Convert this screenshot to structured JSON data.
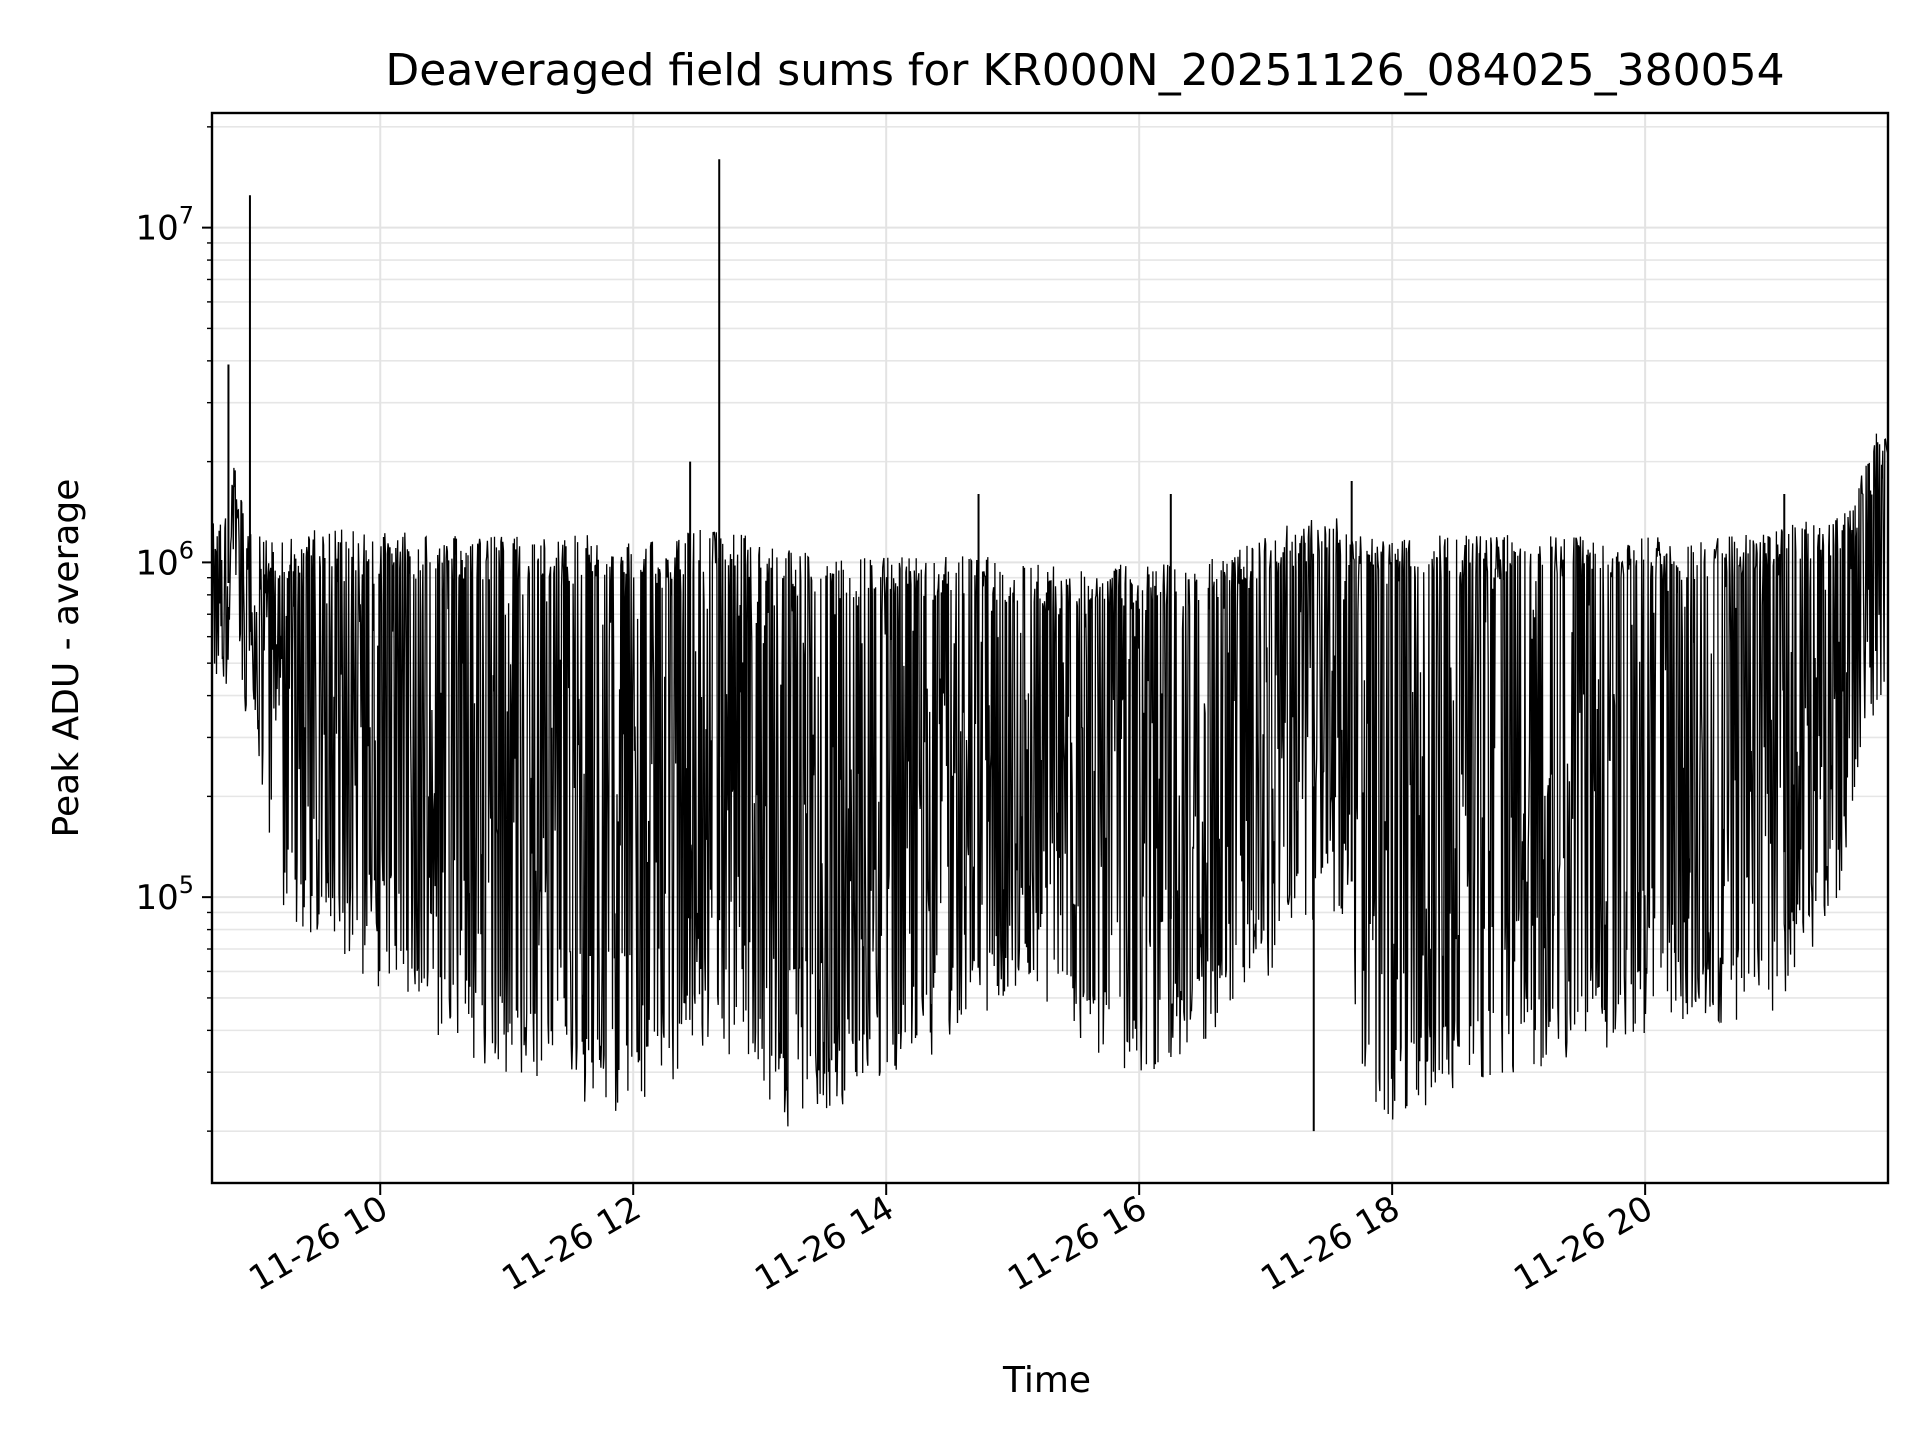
{
  "chart_data": {
    "type": "line",
    "title": "Deaveraged field sums for KR000N_20251126_084025_380054",
    "xlabel": "Time",
    "ylabel": "Peak ADU - average",
    "yscale": "log",
    "grid": true,
    "ylim": [
      14000,
      22000000
    ],
    "xlim_hours": [
      8.67,
      21.92
    ],
    "x_tick_labels": [
      "11-26 10",
      "11-26 12",
      "11-26 14",
      "11-26 16",
      "11-26 18",
      "11-26 20"
    ],
    "y_tick_labels": [
      {
        "base": "10",
        "exp": "5"
      },
      {
        "base": "10",
        "exp": "6"
      },
      {
        "base": "10",
        "exp": "7"
      }
    ],
    "series": [
      {
        "color": "#000000",
        "envelope": {
          "x_hours": [
            8.67,
            8.85,
            9.0,
            9.2,
            9.5,
            9.8,
            10.0,
            10.3,
            10.6,
            11.0,
            11.4,
            11.8,
            12.2,
            12.5,
            12.9,
            13.2,
            13.6,
            14.0,
            14.4,
            14.8,
            15.2,
            15.6,
            16.0,
            16.4,
            16.8,
            17.2,
            17.5,
            17.8,
            18.0,
            18.3,
            18.7,
            19.0,
            19.4,
            19.8,
            20.2,
            20.6,
            21.0,
            21.4,
            21.6,
            21.8,
            21.92
          ],
          "high": [
            1200000,
            1800000,
            1100000,
            1100000,
            1150000,
            1150000,
            1150000,
            1100000,
            1100000,
            1100000,
            1100000,
            1100000,
            1050000,
            1150000,
            1100000,
            1000000,
            950000,
            950000,
            950000,
            950000,
            900000,
            900000,
            900000,
            900000,
            1000000,
            1200000,
            1300000,
            1100000,
            1050000,
            1100000,
            1100000,
            1100000,
            1100000,
            1100000,
            1100000,
            1100000,
            1150000,
            1250000,
            1300000,
            2200000,
            2500000
          ],
          "low": [
            380000,
            600000,
            400000,
            130000,
            85000,
            80000,
            70000,
            55000,
            45000,
            40000,
            34000,
            30000,
            32000,
            45000,
            40000,
            27000,
            30000,
            38000,
            45000,
            60000,
            70000,
            45000,
            38000,
            45000,
            60000,
            90000,
            130000,
            30000,
            28000,
            32000,
            38000,
            40000,
            42000,
            48000,
            55000,
            55000,
            60000,
            100000,
            160000,
            450000,
            500000
          ],
          "mid": [
            600000,
            1000000,
            550000,
            250000,
            150000,
            120000,
            110000,
            95000,
            80000,
            75000,
            70000,
            65000,
            70000,
            90000,
            80000,
            60000,
            65000,
            75000,
            85000,
            100000,
            110000,
            90000,
            80000,
            90000,
            110000,
            170000,
            250000,
            65000,
            55000,
            70000,
            80000,
            85000,
            90000,
            100000,
            110000,
            110000,
            120000,
            200000,
            350000,
            800000,
            900000
          ]
        },
        "spikes": [
          {
            "x_hours": 8.8,
            "y": 3900000
          },
          {
            "x_hours": 8.97,
            "y": 12500000
          },
          {
            "x_hours": 11.66,
            "y": 1000000
          },
          {
            "x_hours": 12.45,
            "y": 2000000
          },
          {
            "x_hours": 12.68,
            "y": 16000000
          },
          {
            "x_hours": 14.73,
            "y": 1600000
          },
          {
            "x_hours": 16.25,
            "y": 1600000
          },
          {
            "x_hours": 17.38,
            "y": 20000
          },
          {
            "x_hours": 17.68,
            "y": 1750000
          },
          {
            "x_hours": 21.1,
            "y": 1600000
          }
        ]
      }
    ]
  }
}
